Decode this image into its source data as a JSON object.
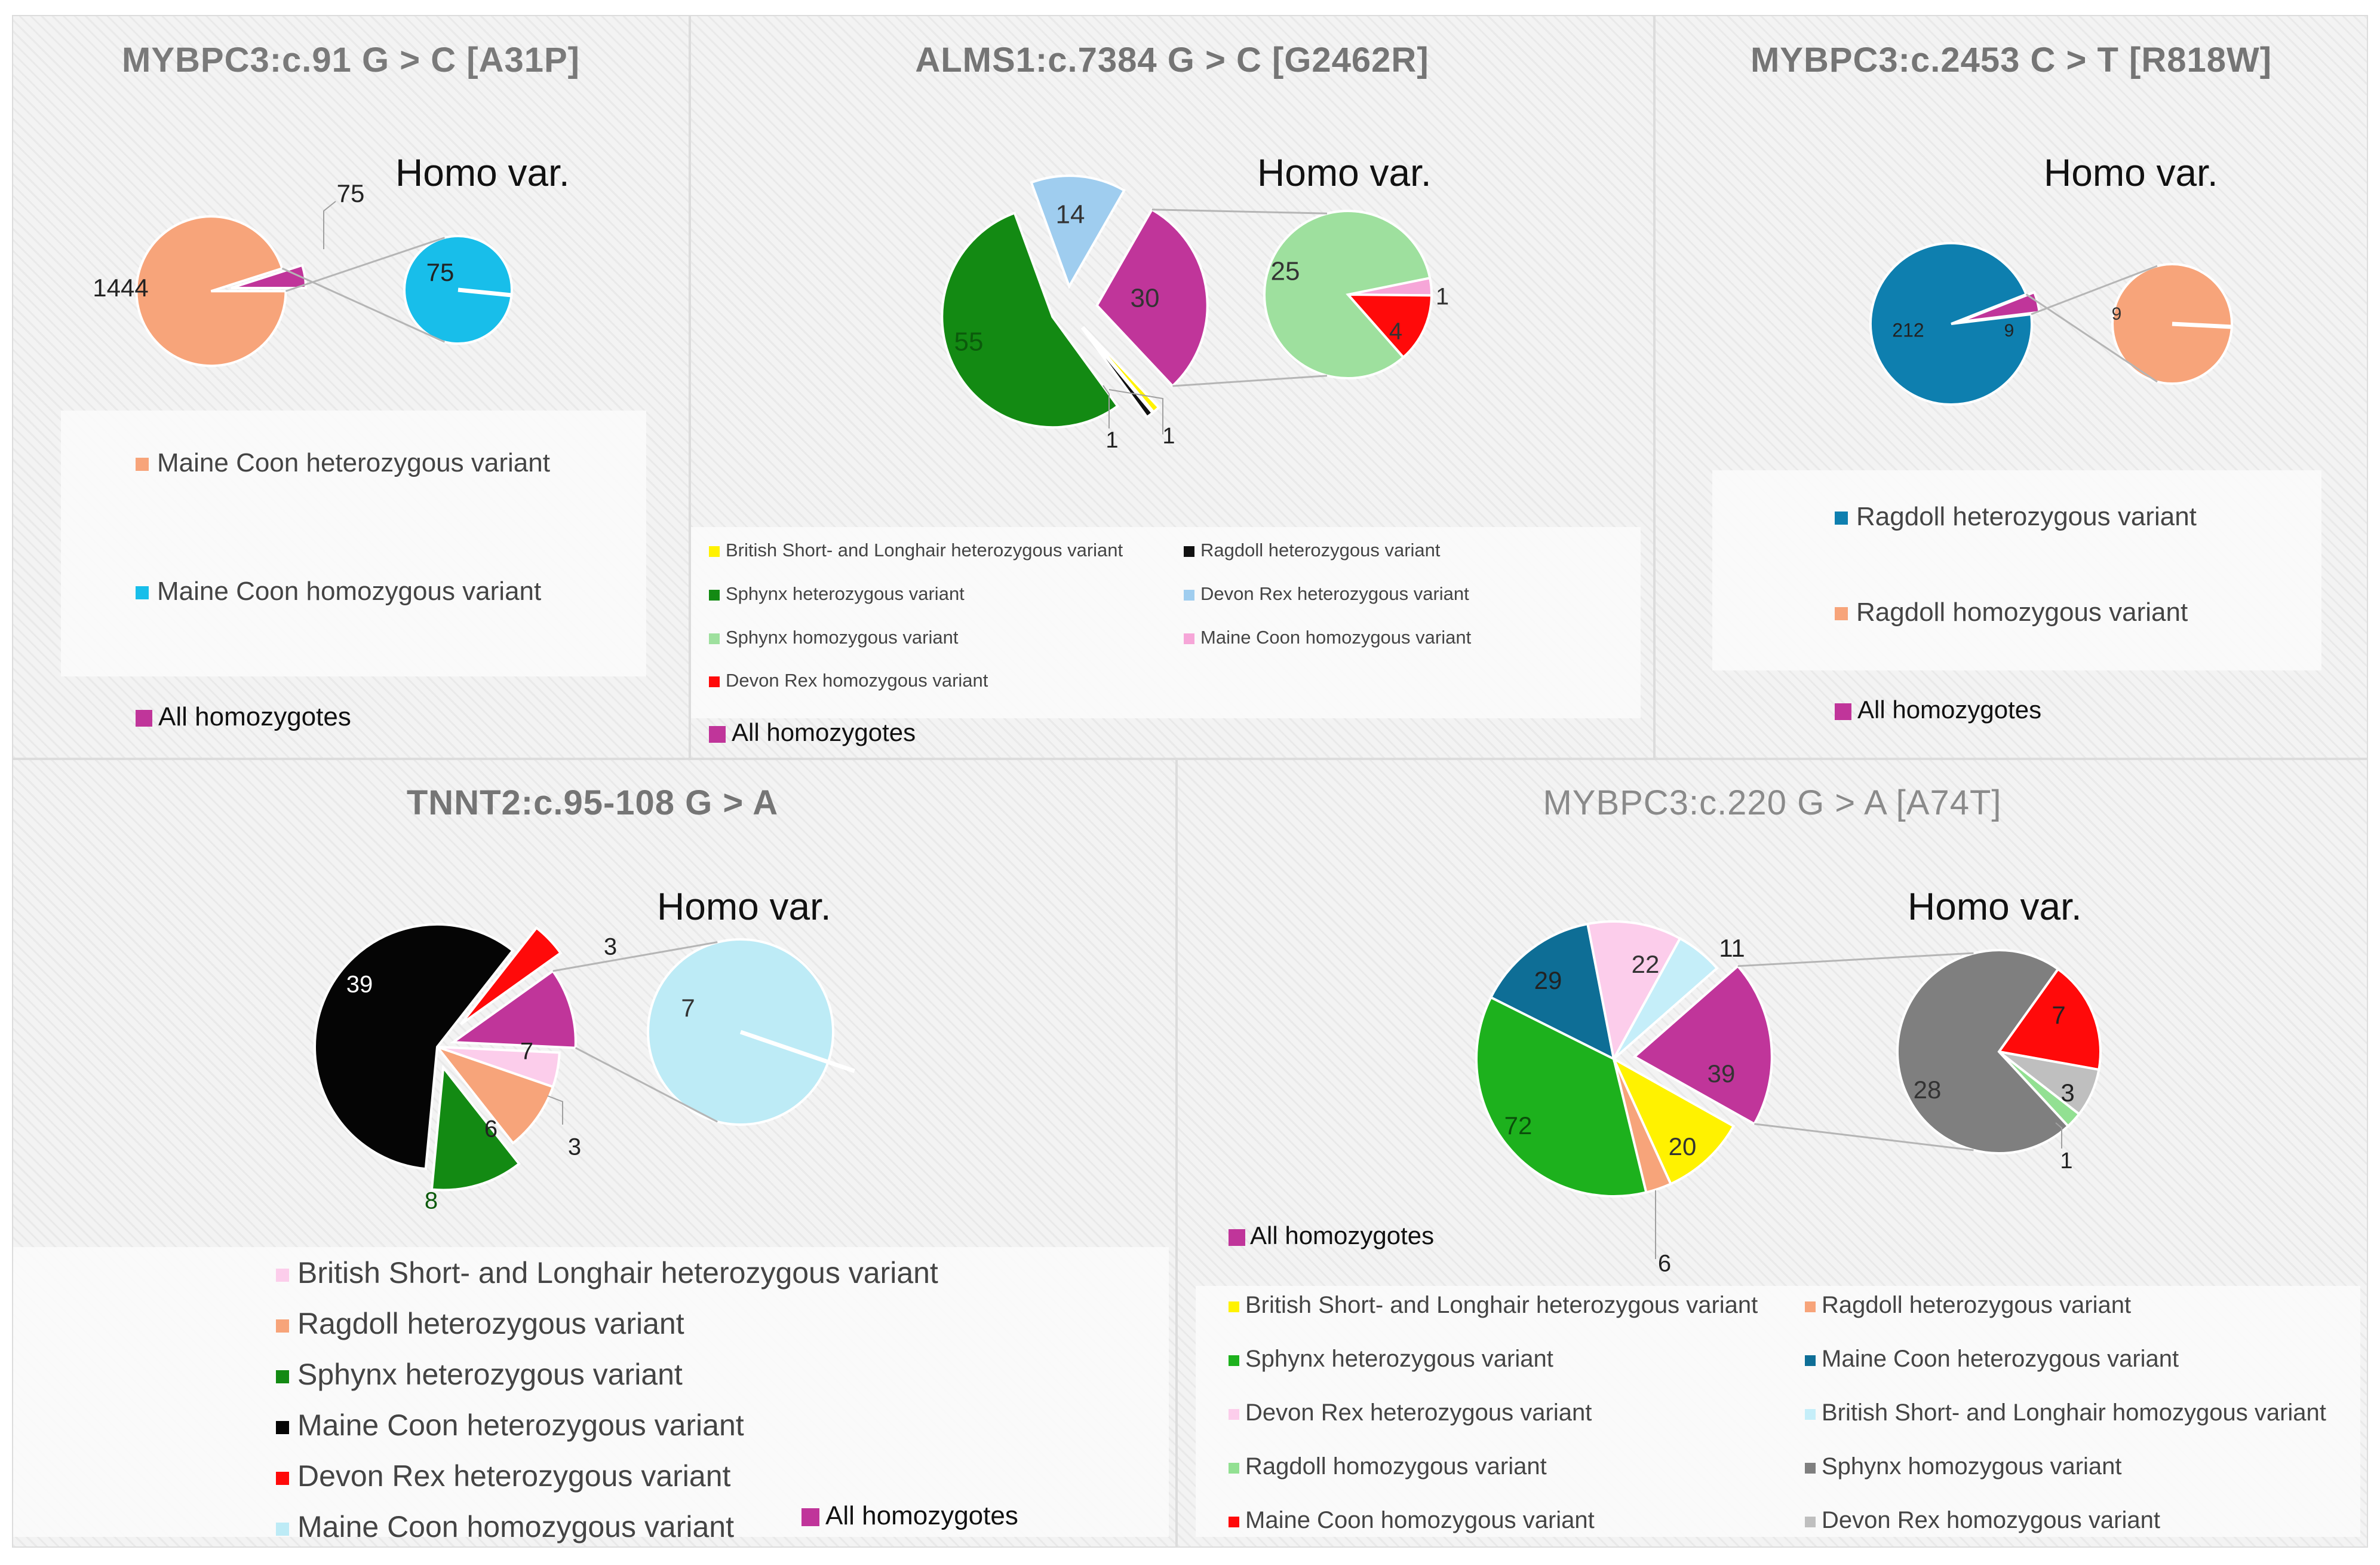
{
  "chart_data": [
    {
      "type": "pie",
      "subtype": "pie-of-pie",
      "title": "MYBPC3:c.91 G > C [A31P]",
      "secondary_title": "Homo var.",
      "main_slices": [
        {
          "label": "Maine Coon heterozygous variant",
          "value": 1444,
          "color": "#F7A47A",
          "display": "1444"
        },
        {
          "label": "All homozygotes",
          "value": 75,
          "color": "#C0359A",
          "display": "75"
        }
      ],
      "secondary_slices": [
        {
          "label": "Maine Coon homozygous variant",
          "value": 75,
          "color": "#18BEEA",
          "display": "75"
        }
      ],
      "legend": [
        {
          "label": "Maine Coon heterozygous variant",
          "color": "#F7A47A"
        },
        {
          "label": "Maine Coon homozygous variant",
          "color": "#18BEEA"
        }
      ],
      "all_homozygotes_label": "All homozygotes"
    },
    {
      "type": "pie",
      "subtype": "pie-of-pie",
      "title": "ALMS1:c.7384 G > C [G2462R]",
      "secondary_title": "Homo var.",
      "main_slices": [
        {
          "label": "All homozygotes",
          "value": 30,
          "color": "#C0359A",
          "display": "30"
        },
        {
          "label": "British Short- and Longhair heterozygous variant",
          "value": 1,
          "color": "#FFF200",
          "display": "1"
        },
        {
          "label": "Ragdoll heterozygous variant",
          "value": 1,
          "color": "#111111",
          "display": "1"
        },
        {
          "label": "Sphynx heterozygous variant",
          "value": 55,
          "color": "#138A13",
          "display": "55"
        },
        {
          "label": "Devon Rex heterozygous variant",
          "value": 14,
          "color": "#9FCDEF",
          "display": "14"
        }
      ],
      "secondary_slices": [
        {
          "label": "Maine Coon homozygous variant",
          "value": 1,
          "color": "#F6A6D8",
          "display": "1"
        },
        {
          "label": "Devon Rex homozygous variant",
          "value": 4,
          "color": "#FF0A0A",
          "display": "4"
        },
        {
          "label": "Sphynx homozygous variant",
          "value": 25,
          "color": "#9EE09E",
          "display": "25"
        }
      ],
      "legend": [
        {
          "label": "British Short- and Longhair heterozygous variant",
          "color": "#FFF200"
        },
        {
          "label": "Ragdoll heterozygous variant",
          "color": "#111111"
        },
        {
          "label": "Sphynx heterozygous variant",
          "color": "#138A13"
        },
        {
          "label": "Devon Rex heterozygous variant",
          "color": "#9FCDEF"
        },
        {
          "label": "Sphynx homozygous variant",
          "color": "#9EE09E"
        },
        {
          "label": "Maine Coon homozygous variant",
          "color": "#F6A6D8"
        },
        {
          "label": "Devon Rex homozygous variant",
          "color": "#FF0A0A"
        }
      ],
      "all_homozygotes_label": "All homozygotes"
    },
    {
      "type": "pie",
      "subtype": "pie-of-pie",
      "title": "MYBPC3:c.2453 C > T [R818W]",
      "secondary_title": "Homo var.",
      "main_slices": [
        {
          "label": "Ragdoll heterozygous variant",
          "value": 212,
          "color": "#0E7FAF",
          "display": "212"
        },
        {
          "label": "All homozygotes",
          "value": 9,
          "color": "#C0359A",
          "display": "9"
        }
      ],
      "secondary_slices": [
        {
          "label": "Ragdoll homozygous variant",
          "value": 9,
          "color": "#F7A47A",
          "display": "9"
        }
      ],
      "legend": [
        {
          "label": "Ragdoll heterozygous variant",
          "color": "#0E7FAF"
        },
        {
          "label": "Ragdoll homozygous variant",
          "color": "#F7A47A"
        }
      ],
      "all_homozygotes_label": "All homozygotes"
    },
    {
      "type": "pie",
      "subtype": "pie-of-pie",
      "title": "TNNT2:c.95-108 G > A",
      "secondary_title": "Homo var.",
      "main_slices": [
        {
          "label": "All homozygotes",
          "value": 7,
          "color": "#C0359A",
          "display": "7"
        },
        {
          "label": "British Short- and Longhair heterozygous variant",
          "value": 3,
          "color": "#FCCDEB",
          "display": "3"
        },
        {
          "label": "Ragdoll heterozygous variant",
          "value": 6,
          "color": "#F7A47A",
          "display": "6"
        },
        {
          "label": "Sphynx heterozygous variant",
          "value": 8,
          "color": "#138A13",
          "display": "8"
        },
        {
          "label": "Maine Coon heterozygous variant",
          "value": 39,
          "color": "#050505",
          "display": "39"
        },
        {
          "label": "Devon Rex heterozygous variant",
          "value": 3,
          "color": "#FF0A0A",
          "display": "3"
        }
      ],
      "secondary_slices": [
        {
          "label": "Maine Coon homozygous variant",
          "value": 7,
          "color": "#BDEBF6",
          "display": "7"
        }
      ],
      "legend": [
        {
          "label": "British Short- and Longhair heterozygous variant",
          "color": "#FCCDEB"
        },
        {
          "label": "Ragdoll heterozygous variant",
          "color": "#F7A47A"
        },
        {
          "label": "Sphynx heterozygous variant",
          "color": "#138A13"
        },
        {
          "label": "Maine Coon heterozygous variant",
          "color": "#050505"
        },
        {
          "label": "Devon Rex heterozygous variant",
          "color": "#FF0A0A"
        },
        {
          "label": "Maine Coon homozygous variant",
          "color": "#BDEBF6"
        }
      ],
      "all_homozygotes_label": "All homozygotes"
    },
    {
      "type": "pie",
      "subtype": "pie-of-pie",
      "title": "MYBPC3:c.220 G > A [A74T]",
      "secondary_title": "Homo var.",
      "main_slices": [
        {
          "label": "All homozygotes",
          "value": 39,
          "color": "#C0359A",
          "display": "39"
        },
        {
          "label": "British Short- and Longhair heterozygous variant",
          "value": 20,
          "color": "#FFF200",
          "display": "20"
        },
        {
          "label": "Ragdoll heterozygous variant",
          "value": 6,
          "color": "#F7A47A",
          "display": "6"
        },
        {
          "label": "Sphynx heterozygous variant",
          "value": 72,
          "color": "#1DB11D",
          "display": "72"
        },
        {
          "label": "Maine Coon heterozygous variant",
          "value": 29,
          "color": "#0E6E96",
          "display": "29"
        },
        {
          "label": "Devon Rex heterozygous variant",
          "value": 22,
          "color": "#FCCDEB",
          "display": "22"
        },
        {
          "label": "British Short- and Longhair homozygous variant",
          "value": 11,
          "color": "#C5EEF9",
          "display": "11"
        }
      ],
      "secondary_slices": [
        {
          "label": "Maine Coon homozygous variant",
          "value": 7,
          "color": "#FF0A0A",
          "display": "7"
        },
        {
          "label": "Devon Rex homozygous variant",
          "value": 3,
          "color": "#BFBFBF",
          "display": "3"
        },
        {
          "label": "Ragdoll homozygous variant",
          "value": 1,
          "color": "#92E092",
          "display": "1"
        },
        {
          "label": "Sphynx homozygous variant",
          "value": 28,
          "color": "#7F7F7F",
          "display": "28"
        }
      ],
      "legend": [
        {
          "label": "British Short- and Longhair heterozygous variant",
          "color": "#FFF200"
        },
        {
          "label": "Ragdoll heterozygous variant",
          "color": "#F7A47A"
        },
        {
          "label": "Sphynx heterozygous variant",
          "color": "#1DB11D"
        },
        {
          "label": "Maine Coon heterozygous variant",
          "color": "#0E6E96"
        },
        {
          "label": "Devon Rex heterozygous variant",
          "color": "#FCCDEB"
        },
        {
          "label": "British Short- and Longhair homozygous variant",
          "color": "#C5EEF9"
        },
        {
          "label": "Ragdoll homozygous variant",
          "color": "#92E092"
        },
        {
          "label": "Sphynx homozygous variant",
          "color": "#7F7F7F"
        },
        {
          "label": "Maine Coon homozygous variant",
          "color": "#FF0A0A"
        },
        {
          "label": "Devon Rex homozygous variant",
          "color": "#BFBFBF"
        }
      ],
      "all_homozygotes_label": "All homozygotes"
    }
  ]
}
